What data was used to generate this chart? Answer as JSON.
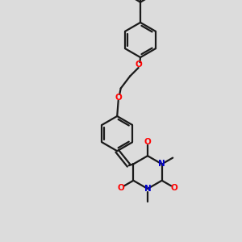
{
  "bg_color": "#dcdcdc",
  "bond_color": "#1a1a1a",
  "oxygen_color": "#ff0000",
  "nitrogen_color": "#0000cc",
  "line_width": 1.6,
  "figsize": [
    3.0,
    3.0
  ],
  "dpi": 100,
  "xlim": [
    0,
    10
  ],
  "ylim": [
    0,
    10
  ],
  "ring_r": 0.72,
  "bar_r": 0.68
}
